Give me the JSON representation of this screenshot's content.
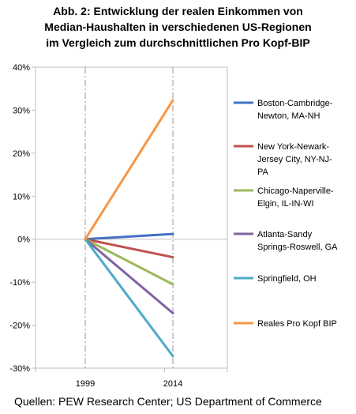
{
  "title_lines": [
    "Abb. 2: Entwicklung der realen Einkommen von",
    "Median-Haushalten in verschiedenen US-Regionen",
    "im Vergleich zum durchschnittlichen Pro Kopf-BIP"
  ],
  "source": "Quellen: PEW Research Center; US Department of Commerce",
  "chart_data": {
    "type": "line",
    "x": [
      "1999",
      "2014"
    ],
    "ylim": [
      -30,
      40
    ],
    "yticks": [
      -30,
      -20,
      -10,
      0,
      10,
      20,
      30,
      40
    ],
    "ytick_labels": [
      "-30%",
      "-20%",
      "-10%",
      "0%",
      "10%",
      "20%",
      "30%",
      "40%"
    ],
    "grid": "vertical dash-dot at categories",
    "legend_position": "right",
    "series": [
      {
        "name": "Boston-Cambridge-Newton, MA-NH",
        "legend_lines": [
          "Boston-Cambridge-",
          "Newton, MA-NH"
        ],
        "color": "#4472C4",
        "values": [
          0,
          1.2
        ]
      },
      {
        "name": "New York-Newark-Jersey City, NY-NJ-PA",
        "legend_lines": [
          "New York-Newark-",
          "Jersey City, NY-NJ-",
          "PA"
        ],
        "color": "#C0504D",
        "values": [
          0,
          -4.2
        ]
      },
      {
        "name": "Chicago-Naperville-Elgin, IL-IN-WI",
        "legend_lines": [
          "Chicago-Naperville-",
          "Elgin, IL-IN-WI"
        ],
        "color": "#9BBB59",
        "values": [
          0,
          -10.5
        ]
      },
      {
        "name": "Atlanta-Sandy Springs-Roswell, GA",
        "legend_lines": [
          "Atlanta-Sandy",
          "Springs-Roswell, GA"
        ],
        "color": "#8064A2",
        "values": [
          0,
          -17.2
        ]
      },
      {
        "name": "Springfield, OH",
        "legend_lines": [
          "Springfield, OH"
        ],
        "color": "#4BACC6",
        "values": [
          0,
          -27.2
        ]
      },
      {
        "name": "Reales Pro Kopf BIP",
        "legend_lines": [
          "Reales Pro Kopf BIP"
        ],
        "color": "#F79646",
        "values": [
          0,
          32.3
        ]
      }
    ]
  }
}
